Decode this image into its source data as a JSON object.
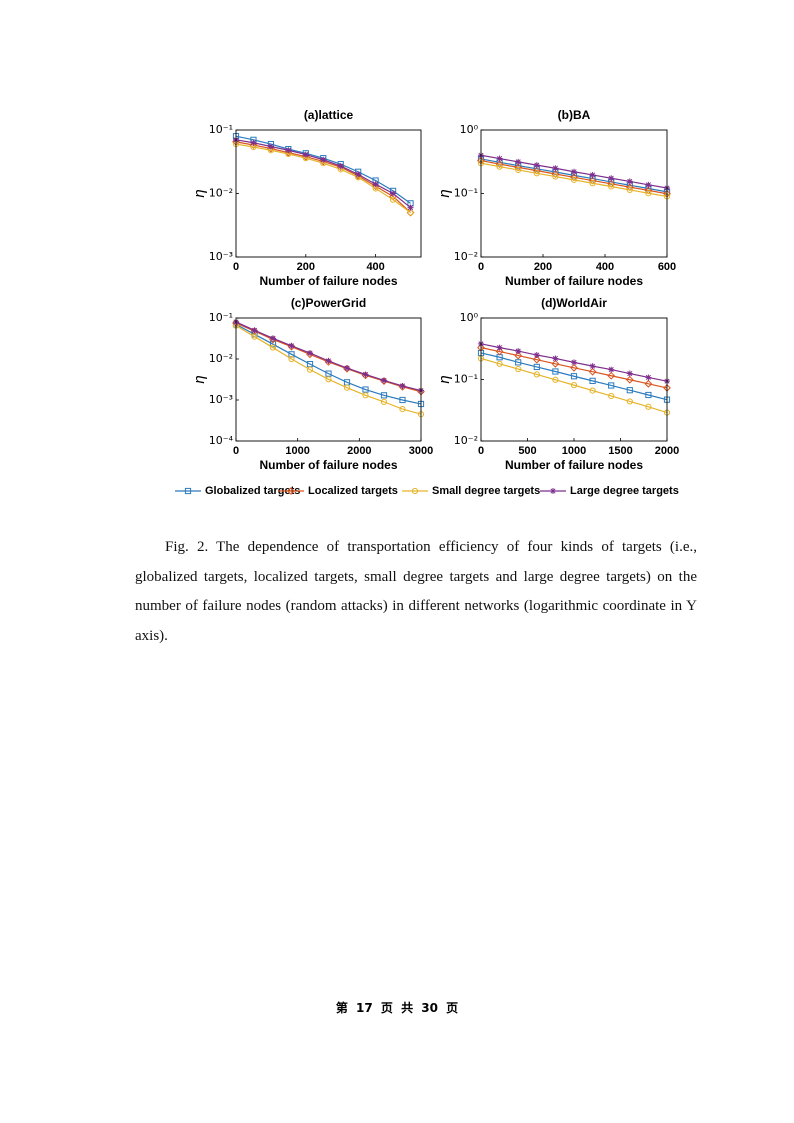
{
  "chart_data": [
    {
      "type": "line",
      "title": "(a)lattice",
      "xlabel": "Number of failure nodes",
      "ylabel": "η",
      "log_y": true,
      "x": [
        0,
        50,
        100,
        150,
        200,
        250,
        300,
        350,
        400,
        450,
        500
      ],
      "xlim": [
        0,
        530
      ],
      "xticks": [
        0,
        200,
        400
      ],
      "ylim": [
        0.001,
        0.1
      ],
      "yticks": [
        {
          "value": 0.1,
          "label": "10⁻¹"
        },
        {
          "value": 0.01,
          "label": "10⁻²"
        },
        {
          "value": 0.001,
          "label": "10⁻³"
        }
      ],
      "series": [
        {
          "name": "Globalized targets",
          "color": "#2b7bbf",
          "marker": "square",
          "values": [
            0.08,
            0.07,
            0.06,
            0.05,
            0.043,
            0.036,
            0.029,
            0.022,
            0.016,
            0.011,
            0.007
          ]
        },
        {
          "name": "Localized targets",
          "color": "#d9541e",
          "marker": "diamond",
          "values": [
            0.065,
            0.058,
            0.051,
            0.044,
            0.038,
            0.032,
            0.026,
            0.019,
            0.013,
            0.009,
            0.005
          ]
        },
        {
          "name": "Small degree targets",
          "color": "#e6b42a",
          "marker": "circle",
          "values": [
            0.06,
            0.054,
            0.048,
            0.042,
            0.036,
            0.03,
            0.024,
            0.018,
            0.012,
            0.008,
            0.005
          ]
        },
        {
          "name": "Large degree targets",
          "color": "#7e2f8e",
          "marker": "asterisk",
          "values": [
            0.07,
            0.063,
            0.055,
            0.048,
            0.041,
            0.034,
            0.027,
            0.02,
            0.014,
            0.01,
            0.006
          ]
        }
      ]
    },
    {
      "type": "line",
      "title": "(b)BA",
      "xlabel": "Number of failure nodes",
      "ylabel": "η",
      "log_y": true,
      "x": [
        0,
        60,
        120,
        180,
        240,
        300,
        360,
        420,
        480,
        540,
        600
      ],
      "xlim": [
        0,
        600
      ],
      "xticks": [
        0,
        200,
        400,
        600
      ],
      "ylim": [
        0.01,
        1
      ],
      "yticks": [
        {
          "value": 1,
          "label": "10⁰"
        },
        {
          "value": 0.1,
          "label": "10⁻¹"
        },
        {
          "value": 0.01,
          "label": "10⁻²"
        }
      ],
      "series": [
        {
          "values": [
            0.35,
            0.31,
            0.275,
            0.245,
            0.218,
            0.193,
            0.172,
            0.152,
            0.135,
            0.12,
            0.106
          ]
        },
        {
          "values": [
            0.33,
            0.29,
            0.258,
            0.229,
            0.203,
            0.18,
            0.16,
            0.142,
            0.126,
            0.112,
            0.099
          ]
        },
        {
          "values": [
            0.3,
            0.265,
            0.235,
            0.208,
            0.185,
            0.164,
            0.145,
            0.129,
            0.114,
            0.101,
            0.09
          ]
        },
        {
          "values": [
            0.4,
            0.355,
            0.315,
            0.28,
            0.25,
            0.22,
            0.196,
            0.174,
            0.155,
            0.137,
            0.122
          ]
        }
      ]
    },
    {
      "type": "line",
      "title": "(c)PowerGrid",
      "xlabel": "Number of failure nodes",
      "ylabel": "η",
      "log_y": true,
      "x": [
        0,
        300,
        600,
        900,
        1200,
        1500,
        1800,
        2100,
        2400,
        2700,
        3000
      ],
      "xlim": [
        0,
        3000
      ],
      "xticks": [
        0,
        1000,
        2000,
        3000
      ],
      "ylim": [
        0.0001,
        0.1
      ],
      "yticks": [
        {
          "value": 0.1,
          "label": "10⁻¹"
        },
        {
          "value": 0.01,
          "label": "10⁻²"
        },
        {
          "value": 0.001,
          "label": "10⁻³"
        },
        {
          "value": 0.0001,
          "label": "10⁻⁴"
        }
      ],
      "series": [
        {
          "values": [
            0.07,
            0.04,
            0.023,
            0.013,
            0.0075,
            0.0044,
            0.0027,
            0.0018,
            0.0013,
            0.001,
            0.0008
          ]
        },
        {
          "values": [
            0.075,
            0.048,
            0.03,
            0.02,
            0.013,
            0.0085,
            0.0058,
            0.004,
            0.0029,
            0.0021,
            0.0016
          ]
        },
        {
          "values": [
            0.065,
            0.035,
            0.019,
            0.01,
            0.0055,
            0.0032,
            0.002,
            0.0013,
            0.0009,
            0.0006,
            0.00045
          ]
        },
        {
          "values": [
            0.08,
            0.05,
            0.032,
            0.021,
            0.014,
            0.009,
            0.006,
            0.0042,
            0.003,
            0.0022,
            0.0017
          ]
        }
      ]
    },
    {
      "type": "line",
      "title": "(d)WorldAir",
      "xlabel": "Number of failure nodes",
      "ylabel": "η",
      "log_y": true,
      "x": [
        0,
        200,
        400,
        600,
        800,
        1000,
        1200,
        1400,
        1600,
        1800,
        2000
      ],
      "xlim": [
        0,
        2000
      ],
      "xticks": [
        0,
        500,
        1000,
        1500,
        2000
      ],
      "ylim": [
        0.01,
        1
      ],
      "yticks": [
        {
          "value": 1,
          "label": "10⁰"
        },
        {
          "value": 0.1,
          "label": "10⁻¹"
        },
        {
          "value": 0.01,
          "label": "10⁻²"
        }
      ],
      "series": [
        {
          "values": [
            0.27,
            0.23,
            0.19,
            0.16,
            0.135,
            0.113,
            0.095,
            0.08,
            0.067,
            0.056,
            0.047
          ]
        },
        {
          "values": [
            0.33,
            0.285,
            0.245,
            0.21,
            0.18,
            0.155,
            0.134,
            0.115,
            0.099,
            0.085,
            0.073
          ]
        },
        {
          "values": [
            0.22,
            0.18,
            0.148,
            0.121,
            0.099,
            0.081,
            0.066,
            0.054,
            0.044,
            0.036,
            0.029
          ]
        },
        {
          "values": [
            0.38,
            0.33,
            0.29,
            0.25,
            0.22,
            0.19,
            0.165,
            0.145,
            0.125,
            0.108,
            0.094
          ]
        }
      ]
    }
  ],
  "caption": "Fig. 2. The dependence of transportation efficiency of four kinds of targets (i.e., globalized targets, localized targets, small degree targets and large degree targets) on the number of failure nodes (random attacks) in different networks (logarithmic coordinate in Y axis).",
  "footer": "第 17 页 共 30 页"
}
